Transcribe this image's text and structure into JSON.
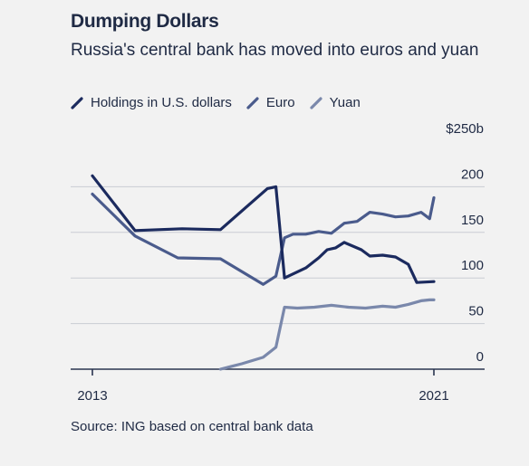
{
  "title": "Dumping Dollars",
  "subtitle": "Russia's central bank has moved into euros and yuan",
  "source": "Source: ING based on central bank data",
  "chart_data": {
    "type": "line",
    "title": "Dumping Dollars",
    "subtitle": "Russia's central bank has moved into euros and yuan",
    "xlabel": "",
    "ylabel": "",
    "x_range": [
      2013,
      2021
    ],
    "x_ticks": [
      2013,
      2021
    ],
    "x_tick_labels": [
      "2013",
      "2021"
    ],
    "ylim": [
      0,
      250
    ],
    "y_ticks": [
      0,
      50,
      100,
      150,
      200,
      250
    ],
    "y_tick_labels": [
      "0",
      "50",
      "100",
      "150",
      "200",
      "$250b"
    ],
    "grid": true,
    "legend_position": "top-left",
    "series": [
      {
        "name": "Holdings in U.S. dollars",
        "color": "#1b2a5e",
        "points": [
          [
            2013.0,
            212
          ],
          [
            2014.0,
            152
          ],
          [
            2015.1,
            154
          ],
          [
            2016.0,
            153
          ],
          [
            2017.1,
            198
          ],
          [
            2017.3,
            200
          ],
          [
            2017.5,
            100
          ],
          [
            2018.0,
            111
          ],
          [
            2018.3,
            122
          ],
          [
            2018.5,
            131
          ],
          [
            2018.7,
            133
          ],
          [
            2018.9,
            139
          ],
          [
            2019.3,
            131
          ],
          [
            2019.5,
            124
          ],
          [
            2019.8,
            125
          ],
          [
            2020.1,
            123
          ],
          [
            2020.4,
            115
          ],
          [
            2020.6,
            95
          ],
          [
            2021.0,
            96
          ]
        ]
      },
      {
        "name": "Euro",
        "color": "#4a5b8c",
        "points": [
          [
            2013.0,
            192
          ],
          [
            2014.0,
            146
          ],
          [
            2015.0,
            122
          ],
          [
            2016.0,
            121
          ],
          [
            2017.0,
            93
          ],
          [
            2017.3,
            102
          ],
          [
            2017.5,
            144
          ],
          [
            2017.7,
            148
          ],
          [
            2018.0,
            148
          ],
          [
            2018.3,
            151
          ],
          [
            2018.6,
            149
          ],
          [
            2018.9,
            160
          ],
          [
            2019.2,
            162
          ],
          [
            2019.5,
            172
          ],
          [
            2019.8,
            170
          ],
          [
            2020.1,
            167
          ],
          [
            2020.4,
            168
          ],
          [
            2020.7,
            172
          ],
          [
            2020.9,
            165
          ],
          [
            2021.0,
            188
          ]
        ]
      },
      {
        "name": "Yuan",
        "color": "#7a88ab",
        "points": [
          [
            2016.0,
            0
          ],
          [
            2016.5,
            6
          ],
          [
            2017.0,
            13
          ],
          [
            2017.3,
            24
          ],
          [
            2017.5,
            68
          ],
          [
            2017.8,
            67
          ],
          [
            2018.2,
            68
          ],
          [
            2018.6,
            70
          ],
          [
            2019.0,
            68
          ],
          [
            2019.4,
            67
          ],
          [
            2019.8,
            69
          ],
          [
            2020.1,
            68
          ],
          [
            2020.4,
            71
          ],
          [
            2020.7,
            75
          ],
          [
            2020.9,
            76
          ],
          [
            2021.0,
            76
          ]
        ]
      }
    ]
  }
}
